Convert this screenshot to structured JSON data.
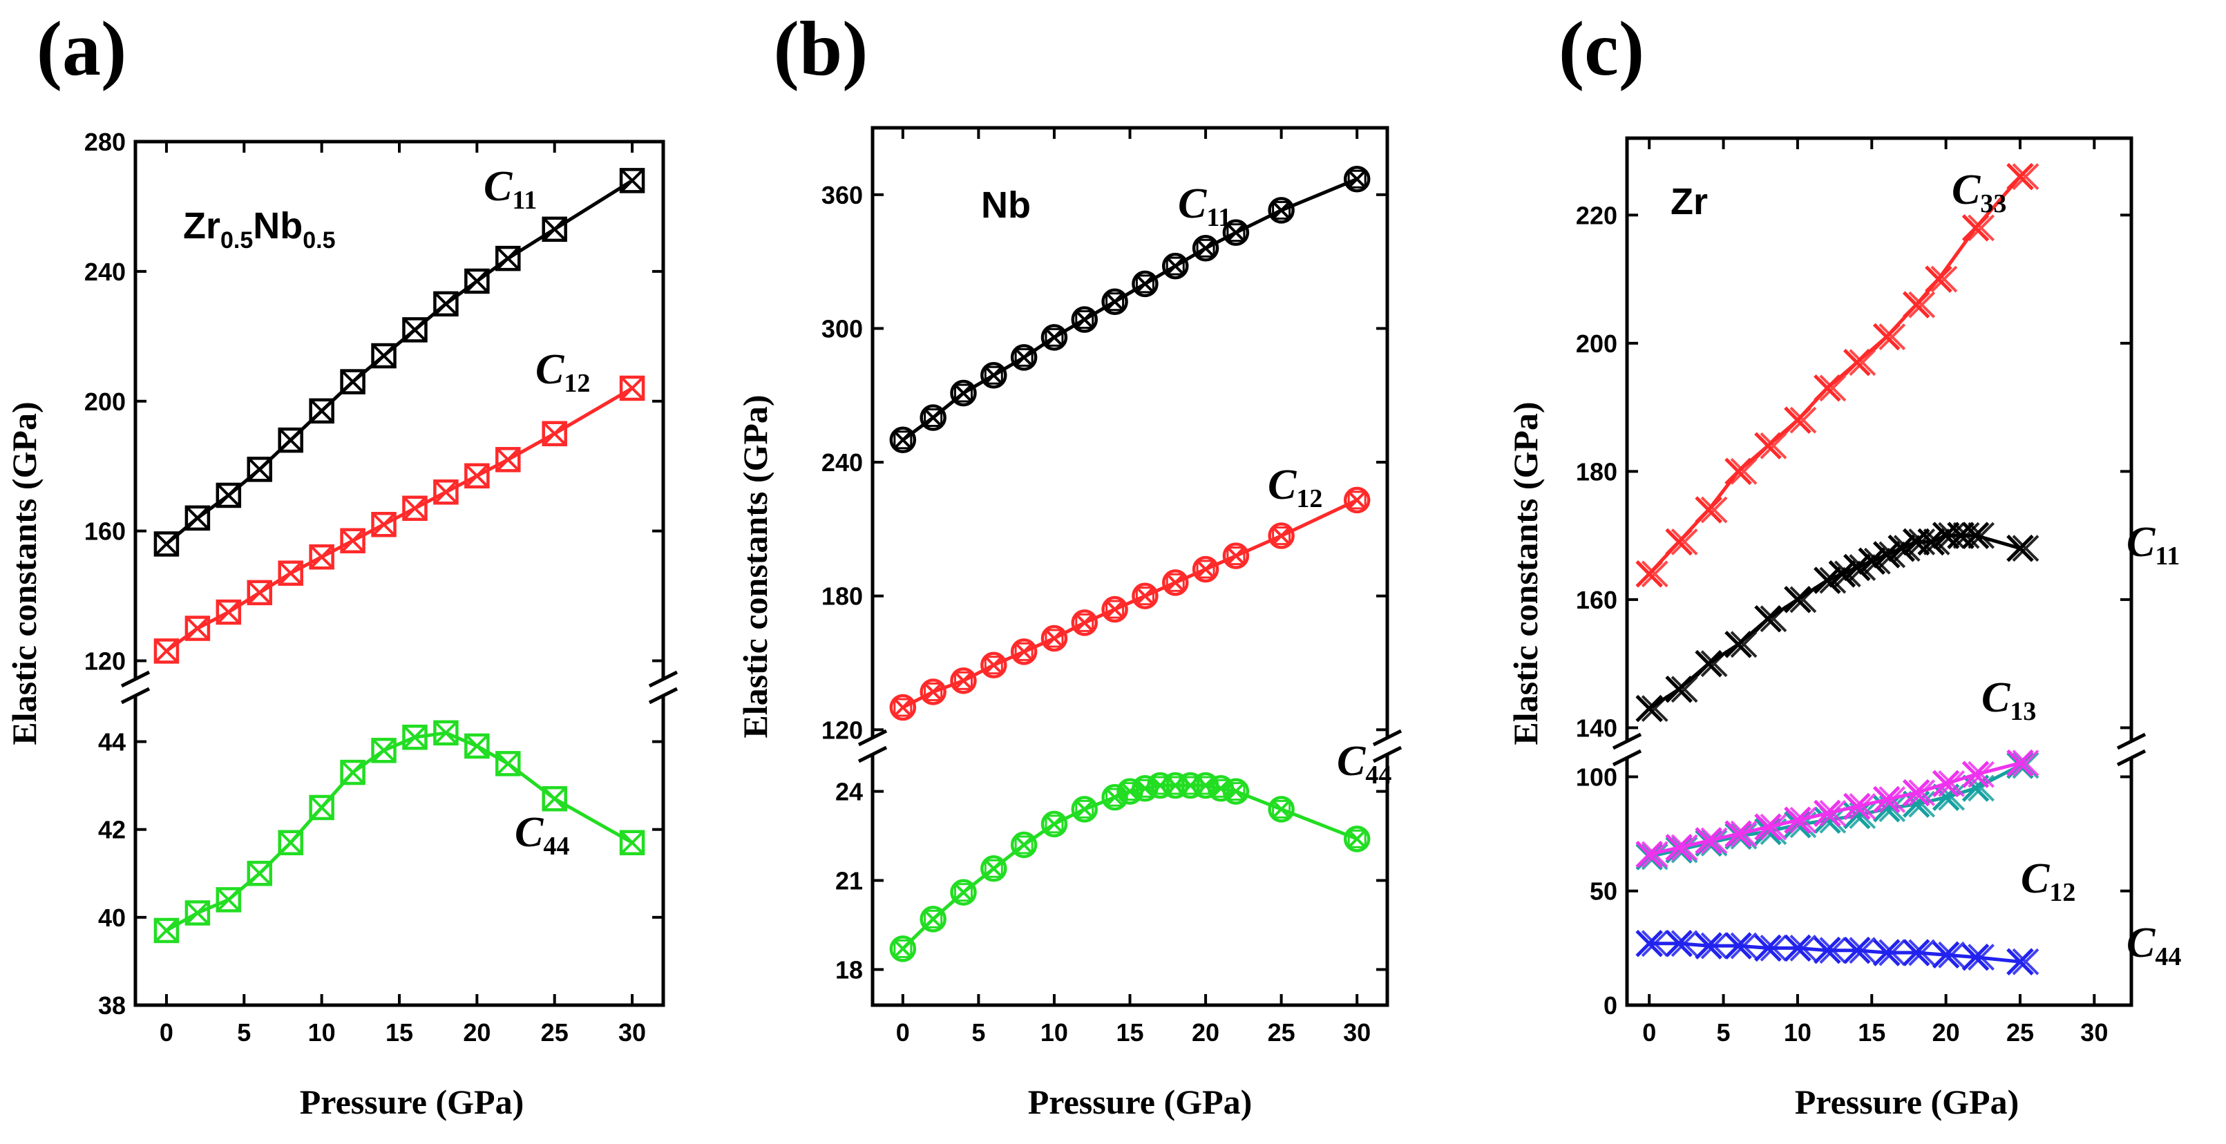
{
  "figure": {
    "axis_x_title": "Pressure (GPa)",
    "axis_y_title": "Elastic constants (GPa)"
  },
  "chart_data": [
    {
      "type": "line",
      "panel": "(a)",
      "material": {
        "base": "Zr",
        "sub1": "0.5",
        "mid": "Nb",
        "sub2": "0.5"
      },
      "xlabel": "Pressure (GPa)",
      "ylabel": "Elastic constants (GPa)",
      "xlim": [
        -2,
        32
      ],
      "xticks": [
        0,
        5,
        10,
        15,
        20,
        25,
        30
      ],
      "broken_y_axis": true,
      "upper": {
        "ylim": [
          115,
          280
        ],
        "yticks": [
          120,
          160,
          200,
          240,
          280
        ]
      },
      "lower": {
        "ylim": [
          38,
          45
        ],
        "yticks": [
          38,
          40,
          42,
          44
        ]
      },
      "series": [
        {
          "name": "C11",
          "label_main": "C",
          "label_sub": "11",
          "color": "#000000",
          "segment": "upper",
          "marker": "square-x",
          "x": [
            0,
            2,
            4,
            6,
            8,
            10,
            12,
            14,
            16,
            18,
            20,
            22,
            25,
            30
          ],
          "y": [
            156,
            164,
            171,
            179,
            188,
            197,
            206,
            214,
            222,
            230,
            237,
            244,
            253,
            268
          ]
        },
        {
          "name": "C12",
          "label_main": "C",
          "label_sub": "12",
          "color": "#ff2a2a",
          "segment": "upper",
          "marker": "square-x",
          "x": [
            0,
            2,
            4,
            6,
            8,
            10,
            12,
            14,
            16,
            18,
            20,
            22,
            25,
            30
          ],
          "y": [
            123,
            130,
            135,
            141,
            147,
            152,
            157,
            162,
            167,
            172,
            177,
            182,
            190,
            204
          ]
        },
        {
          "name": "C44",
          "label_main": "C",
          "label_sub": "44",
          "color": "#22dd22",
          "segment": "lower",
          "marker": "square-x",
          "x": [
            0,
            2,
            4,
            6,
            8,
            10,
            12,
            14,
            16,
            18,
            20,
            22,
            25,
            30
          ],
          "y": [
            39.7,
            40.1,
            40.4,
            41.0,
            41.7,
            42.5,
            43.3,
            43.8,
            44.1,
            44.2,
            43.9,
            43.5,
            42.7,
            41.7
          ]
        }
      ]
    },
    {
      "type": "line",
      "panel": "(b)",
      "material": {
        "base": "Nb"
      },
      "xlabel": "Pressure (GPa)",
      "ylabel": "Elastic constants (GPa)",
      "xlim": [
        -2,
        32
      ],
      "xticks": [
        0,
        5,
        10,
        15,
        20,
        25,
        30
      ],
      "broken_y_axis": true,
      "upper": {
        "ylim": [
          117,
          390
        ],
        "yticks": [
          120,
          180,
          240,
          300,
          360
        ]
      },
      "lower": {
        "ylim": [
          16.8,
          25.2
        ],
        "yticks": [
          18,
          21,
          24
        ]
      },
      "series": [
        {
          "name": "C11",
          "label_main": "C",
          "label_sub": "11",
          "color": "#000000",
          "segment": "upper",
          "marker": "circle-x",
          "x": [
            0,
            2,
            4,
            6,
            8,
            10,
            12,
            14,
            16,
            18,
            20,
            22,
            25,
            30
          ],
          "y": [
            250,
            260,
            271,
            279,
            287,
            296,
            304,
            312,
            320,
            328,
            336,
            343,
            353,
            367
          ]
        },
        {
          "name": "C12",
          "label_main": "C",
          "label_sub": "12",
          "color": "#ff2a2a",
          "segment": "upper",
          "marker": "circle-x",
          "x": [
            0,
            2,
            4,
            6,
            8,
            10,
            12,
            14,
            16,
            18,
            20,
            22,
            25,
            30
          ],
          "y": [
            130,
            137,
            142,
            149,
            155,
            161,
            168,
            174,
            180,
            186,
            192,
            198,
            207,
            223
          ]
        },
        {
          "name": "C44",
          "label_main": "C",
          "label_sub": "44",
          "color": "#22dd22",
          "segment": "lower",
          "marker": "circle-x",
          "x": [
            0,
            2,
            4,
            6,
            8,
            10,
            12,
            14,
            15,
            16,
            17,
            18,
            19,
            20,
            21,
            22,
            25,
            30
          ],
          "y": [
            18.7,
            19.7,
            20.6,
            21.4,
            22.2,
            22.9,
            23.4,
            23.8,
            24.0,
            24.1,
            24.2,
            24.2,
            24.2,
            24.2,
            24.1,
            24.0,
            23.4,
            22.4
          ]
        }
      ]
    },
    {
      "type": "line",
      "panel": "(c)",
      "material": {
        "base": "Zr"
      },
      "xlabel": "Pressure (GPa)",
      "ylabel": "Elastic constants (GPa)",
      "xlim": [
        -1.5,
        32.5
      ],
      "xticks": [
        0,
        5,
        10,
        15,
        20,
        25,
        30
      ],
      "broken_y_axis": true,
      "upper": {
        "ylim": [
          138,
          232
        ],
        "yticks": [
          140,
          160,
          180,
          200,
          220
        ]
      },
      "lower": {
        "ylim": [
          0,
          108
        ],
        "yticks": [
          0,
          50,
          100
        ]
      },
      "series": [
        {
          "name": "C33",
          "label_main": "C",
          "label_sub": "33",
          "color": "#ff2a2a",
          "segment": "upper",
          "marker": "double-x",
          "x": [
            0,
            2,
            4,
            6,
            8,
            10,
            12,
            14,
            16,
            18,
            19.5,
            22,
            25
          ],
          "y": [
            164,
            169,
            174,
            180,
            184,
            188,
            193,
            197,
            201,
            206,
            210,
            218,
            226
          ]
        },
        {
          "name": "C11",
          "label_main": "C",
          "label_sub": "11",
          "color": "#000000",
          "segment": "upper",
          "marker": "double-x",
          "x": [
            0,
            2,
            4,
            6,
            8,
            10,
            12,
            13,
            14,
            15,
            16,
            17,
            18,
            19,
            20,
            21,
            22,
            25
          ],
          "y": [
            143,
            146,
            150,
            153,
            157,
            160,
            163,
            164,
            165,
            166,
            167,
            168,
            169,
            169,
            170,
            170,
            170,
            168
          ]
        },
        {
          "name": "C12",
          "label_main": "C",
          "label_sub": "12",
          "color": "#16a0a0",
          "segment": "lower",
          "marker": "double-x",
          "x": [
            0,
            2,
            4,
            6,
            8,
            10,
            12,
            14,
            16,
            18,
            20,
            22,
            25
          ],
          "y": [
            65,
            68,
            71,
            74,
            76,
            79,
            81,
            83,
            86,
            88,
            91,
            95,
            105
          ]
        },
        {
          "name": "C13",
          "label_main": "C",
          "label_sub": "13",
          "color": "#ee33ee",
          "segment": "lower",
          "marker": "double-x",
          "x": [
            0,
            2,
            4,
            6,
            8,
            10,
            12,
            14,
            16,
            18,
            20,
            22,
            25
          ],
          "y": [
            66,
            69,
            72,
            75,
            78,
            81,
            84,
            87,
            90,
            93,
            97,
            101,
            106
          ]
        },
        {
          "name": "C44",
          "label_main": "C",
          "label_sub": "44",
          "color": "#2222ee",
          "segment": "lower",
          "marker": "double-x",
          "x": [
            0,
            2,
            4,
            6,
            8,
            10,
            12,
            14,
            16,
            18,
            20,
            22,
            25
          ],
          "y": [
            27,
            27,
            26,
            26,
            25,
            25,
            24,
            24,
            23,
            23,
            22,
            21,
            19
          ]
        }
      ]
    }
  ]
}
